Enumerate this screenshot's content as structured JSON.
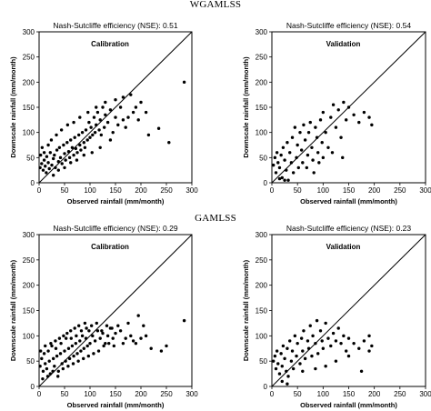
{
  "sections": [
    {
      "title": "WGAMLSS"
    },
    {
      "title": "GAMLSS"
    }
  ],
  "chart_data": [
    {
      "type": "scatter",
      "section": "WGAMLSS",
      "nse_text": "Nash-Sutcliffe efficiency (NSE): 0.51",
      "panel_label": "Calibration",
      "xlabel": "Observed rainfall (mm/month)",
      "ylabel": "Downscale rainfall (mm/month)",
      "xlim": [
        0,
        300
      ],
      "ylim": [
        0,
        300
      ],
      "xticks": [
        0,
        50,
        100,
        150,
        200,
        250,
        300
      ],
      "yticks": [
        0,
        50,
        100,
        150,
        200,
        250,
        300
      ],
      "reference_line": "1:1",
      "points": [
        [
          2,
          30
        ],
        [
          5,
          38
        ],
        [
          8,
          25
        ],
        [
          10,
          45
        ],
        [
          12,
          33
        ],
        [
          15,
          52
        ],
        [
          18,
          40
        ],
        [
          20,
          28
        ],
        [
          22,
          60
        ],
        [
          25,
          35
        ],
        [
          28,
          48
        ],
        [
          30,
          55
        ],
        [
          32,
          30
        ],
        [
          35,
          65
        ],
        [
          38,
          42
        ],
        [
          40,
          70
        ],
        [
          42,
          50
        ],
        [
          45,
          38
        ],
        [
          48,
          75
        ],
        [
          50,
          58
        ],
        [
          52,
          45
        ],
        [
          55,
          80
        ],
        [
          58,
          62
        ],
        [
          60,
          50
        ],
        [
          62,
          85
        ],
        [
          65,
          70
        ],
        [
          68,
          55
        ],
        [
          70,
          90
        ],
        [
          72,
          68
        ],
        [
          75,
          60
        ],
        [
          78,
          95
        ],
        [
          80,
          75
        ],
        [
          82,
          65
        ],
        [
          85,
          100
        ],
        [
          88,
          80
        ],
        [
          90,
          70
        ],
        [
          92,
          105
        ],
        [
          95,
          85
        ],
        [
          98,
          120
        ],
        [
          100,
          90
        ],
        [
          102,
          110
        ],
        [
          105,
          95
        ],
        [
          108,
          130
        ],
        [
          110,
          100
        ],
        [
          112,
          115
        ],
        [
          115,
          140
        ],
        [
          118,
          105
        ],
        [
          120,
          125
        ],
        [
          122,
          95
        ],
        [
          125,
          150
        ],
        [
          128,
          110
        ],
        [
          130,
          135
        ],
        [
          135,
          120
        ],
        [
          140,
          145
        ],
        [
          145,
          100
        ],
        [
          150,
          130
        ],
        [
          155,
          115
        ],
        [
          160,
          150
        ],
        [
          165,
          125
        ],
        [
          170,
          110
        ],
        [
          180,
          175
        ],
        [
          185,
          140
        ],
        [
          195,
          125
        ],
        [
          200,
          160
        ],
        [
          210,
          140
        ],
        [
          215,
          95
        ],
        [
          235,
          108
        ],
        [
          255,
          80
        ],
        [
          285,
          200
        ],
        [
          3,
          55
        ],
        [
          6,
          70
        ],
        [
          10,
          60
        ],
        [
          14,
          20
        ],
        [
          18,
          75
        ],
        [
          24,
          85
        ],
        [
          28,
          15
        ],
        [
          34,
          95
        ],
        [
          38,
          25
        ],
        [
          44,
          105
        ],
        [
          50,
          30
        ],
        [
          56,
          115
        ],
        [
          62,
          40
        ],
        [
          68,
          120
        ],
        [
          74,
          45
        ],
        [
          80,
          130
        ],
        [
          88,
          55
        ],
        [
          96,
          140
        ],
        [
          104,
          60
        ],
        [
          112,
          150
        ],
        [
          120,
          70
        ],
        [
          130,
          160
        ],
        [
          140,
          85
        ],
        [
          150,
          165
        ],
        [
          165,
          170
        ],
        [
          175,
          130
        ],
        [
          190,
          150
        ]
      ]
    },
    {
      "type": "scatter",
      "section": "WGAMLSS",
      "nse_text": "Nash-Sutcliffe efficiency (NSE): 0.54",
      "panel_label": "Validation",
      "xlabel": "Observed rainfall (mm/month)",
      "ylabel": "Downscale rainfall (mm/month)",
      "xlim": [
        0,
        300
      ],
      "ylim": [
        0,
        300
      ],
      "xticks": [
        0,
        50,
        100,
        150,
        200,
        250,
        300
      ],
      "yticks": [
        0,
        50,
        100,
        150,
        200,
        250,
        300
      ],
      "reference_line": "1:1",
      "points": [
        [
          3,
          35
        ],
        [
          6,
          50
        ],
        [
          8,
          20
        ],
        [
          10,
          60
        ],
        [
          12,
          40
        ],
        [
          15,
          30
        ],
        [
          18,
          55
        ],
        [
          20,
          10
        ],
        [
          22,
          70
        ],
        [
          25,
          45
        ],
        [
          28,
          25
        ],
        [
          30,
          80
        ],
        [
          32,
          5
        ],
        [
          35,
          60
        ],
        [
          38,
          40
        ],
        [
          40,
          90
        ],
        [
          42,
          20
        ],
        [
          45,
          110
        ],
        [
          48,
          50
        ],
        [
          50,
          75
        ],
        [
          55,
          100
        ],
        [
          58,
          65
        ],
        [
          60,
          40
        ],
        [
          62,
          115
        ],
        [
          65,
          85
        ],
        [
          70,
          55
        ],
        [
          72,
          100
        ],
        [
          75,
          120
        ],
        [
          78,
          70
        ],
        [
          80,
          45
        ],
        [
          85,
          110
        ],
        [
          88,
          90
        ],
        [
          90,
          60
        ],
        [
          95,
          125
        ],
        [
          98,
          80
        ],
        [
          100,
          140
        ],
        [
          105,
          100
        ],
        [
          110,
          70
        ],
        [
          115,
          130
        ],
        [
          120,
          155
        ],
        [
          125,
          110
        ],
        [
          130,
          145
        ],
        [
          135,
          90
        ],
        [
          140,
          160
        ],
        [
          145,
          125
        ],
        [
          150,
          150
        ],
        [
          160,
          135
        ],
        [
          170,
          120
        ],
        [
          180,
          140
        ],
        [
          190,
          130
        ],
        [
          195,
          115
        ],
        [
          15,
          8
        ],
        [
          25,
          5
        ],
        [
          52,
          30
        ],
        [
          68,
          30
        ],
        [
          82,
          20
        ],
        [
          92,
          40
        ],
        [
          100,
          50
        ],
        [
          118,
          60
        ],
        [
          138,
          50
        ]
      ]
    },
    {
      "type": "scatter",
      "section": "GAMLSS",
      "nse_text": "Nash-Sutcliffe efficiency (NSE): 0.29",
      "panel_label": "Calibration",
      "xlabel": "Observed rainfall (mm/month)",
      "ylabel": "Downscale rainfall (mm/month)",
      "xlim": [
        0,
        300
      ],
      "ylim": [
        0,
        300
      ],
      "xticks": [
        0,
        50,
        100,
        150,
        200,
        250,
        300
      ],
      "yticks": [
        0,
        50,
        100,
        150,
        200,
        250,
        300
      ],
      "reference_line": "1:1",
      "points": [
        [
          2,
          40
        ],
        [
          5,
          55
        ],
        [
          8,
          30
        ],
        [
          10,
          65
        ],
        [
          12,
          45
        ],
        [
          15,
          35
        ],
        [
          18,
          70
        ],
        [
          20,
          50
        ],
        [
          22,
          25
        ],
        [
          25,
          80
        ],
        [
          28,
          55
        ],
        [
          30,
          40
        ],
        [
          32,
          90
        ],
        [
          35,
          60
        ],
        [
          38,
          30
        ],
        [
          40,
          95
        ],
        [
          42,
          65
        ],
        [
          45,
          45
        ],
        [
          48,
          100
        ],
        [
          50,
          70
        ],
        [
          52,
          50
        ],
        [
          55,
          105
        ],
        [
          58,
          75
        ],
        [
          60,
          55
        ],
        [
          62,
          110
        ],
        [
          65,
          80
        ],
        [
          68,
          60
        ],
        [
          70,
          115
        ],
        [
          72,
          85
        ],
        [
          75,
          65
        ],
        [
          78,
          120
        ],
        [
          80,
          90
        ],
        [
          82,
          70
        ],
        [
          85,
          100
        ],
        [
          88,
          75
        ],
        [
          90,
          125
        ],
        [
          92,
          95
        ],
        [
          95,
          80
        ],
        [
          98,
          110
        ],
        [
          100,
          85
        ],
        [
          105,
          100
        ],
        [
          110,
          90
        ],
        [
          115,
          110
        ],
        [
          120,
          95
        ],
        [
          125,
          105
        ],
        [
          130,
          85
        ],
        [
          135,
          100
        ],
        [
          140,
          115
        ],
        [
          145,
          95
        ],
        [
          150,
          105
        ],
        [
          160,
          110
        ],
        [
          170,
          95
        ],
        [
          180,
          100
        ],
        [
          190,
          85
        ],
        [
          200,
          95
        ],
        [
          210,
          100
        ],
        [
          220,
          75
        ],
        [
          240,
          70
        ],
        [
          250,
          80
        ],
        [
          285,
          130
        ],
        [
          3,
          70
        ],
        [
          7,
          15
        ],
        [
          12,
          80
        ],
        [
          17,
          20
        ],
        [
          23,
          85
        ],
        [
          27,
          30
        ],
        [
          33,
          75
        ],
        [
          37,
          20
        ],
        [
          43,
          85
        ],
        [
          47,
          35
        ],
        [
          53,
          95
        ],
        [
          57,
          40
        ],
        [
          63,
          95
        ],
        [
          67,
          45
        ],
        [
          73,
          100
        ],
        [
          77,
          50
        ],
        [
          83,
          110
        ],
        [
          87,
          55
        ],
        [
          93,
          115
        ],
        [
          97,
          60
        ],
        [
          103,
          120
        ],
        [
          107,
          65
        ],
        [
          113,
          125
        ],
        [
          117,
          70
        ],
        [
          123,
          110
        ],
        [
          127,
          80
        ],
        [
          133,
          120
        ],
        [
          137,
          85
        ],
        [
          143,
          115
        ],
        [
          147,
          80
        ],
        [
          155,
          120
        ],
        [
          165,
          85
        ],
        [
          175,
          125
        ],
        [
          185,
          90
        ],
        [
          195,
          140
        ],
        [
          205,
          120
        ]
      ]
    },
    {
      "type": "scatter",
      "section": "GAMLSS",
      "nse_text": "Nash-Sutcliffe efficiency (NSE): 0.23",
      "panel_label": "Validation",
      "xlabel": "Observed rainfall (mm/month)",
      "ylabel": "Downscale rainfall (mm/month)",
      "xlim": [
        0,
        300
      ],
      "ylim": [
        0,
        300
      ],
      "xticks": [
        0,
        50,
        100,
        150,
        200,
        250,
        300
      ],
      "yticks": [
        0,
        50,
        100,
        150,
        200,
        250,
        300
      ],
      "reference_line": "1:1",
      "points": [
        [
          3,
          50
        ],
        [
          6,
          60
        ],
        [
          8,
          35
        ],
        [
          10,
          70
        ],
        [
          12,
          45
        ],
        [
          15,
          25
        ],
        [
          18,
          65
        ],
        [
          20,
          40
        ],
        [
          22,
          80
        ],
        [
          25,
          55
        ],
        [
          28,
          30
        ],
        [
          30,
          75
        ],
        [
          32,
          20
        ],
        [
          35,
          90
        ],
        [
          38,
          50
        ],
        [
          40,
          70
        ],
        [
          42,
          35
        ],
        [
          45,
          100
        ],
        [
          48,
          60
        ],
        [
          50,
          85
        ],
        [
          55,
          45
        ],
        [
          58,
          95
        ],
        [
          60,
          70
        ],
        [
          62,
          110
        ],
        [
          65,
          55
        ],
        [
          70,
          90
        ],
        [
          72,
          75
        ],
        [
          75,
          120
        ],
        [
          78,
          60
        ],
        [
          80,
          100
        ],
        [
          85,
          85
        ],
        [
          88,
          130
        ],
        [
          90,
          65
        ],
        [
          95,
          110
        ],
        [
          98,
          90
        ],
        [
          100,
          75
        ],
        [
          105,
          125
        ],
        [
          110,
          95
        ],
        [
          115,
          80
        ],
        [
          120,
          105
        ],
        [
          125,
          90
        ],
        [
          130,
          115
        ],
        [
          135,
          85
        ],
        [
          140,
          100
        ],
        [
          145,
          70
        ],
        [
          150,
          95
        ],
        [
          160,
          85
        ],
        [
          170,
          75
        ],
        [
          180,
          90
        ],
        [
          190,
          100
        ],
        [
          195,
          80
        ],
        [
          20,
          10
        ],
        [
          30,
          5
        ],
        [
          60,
          30
        ],
        [
          85,
          35
        ],
        [
          105,
          40
        ],
        [
          125,
          50
        ],
        [
          150,
          60
        ],
        [
          175,
          30
        ],
        [
          190,
          70
        ]
      ]
    }
  ]
}
